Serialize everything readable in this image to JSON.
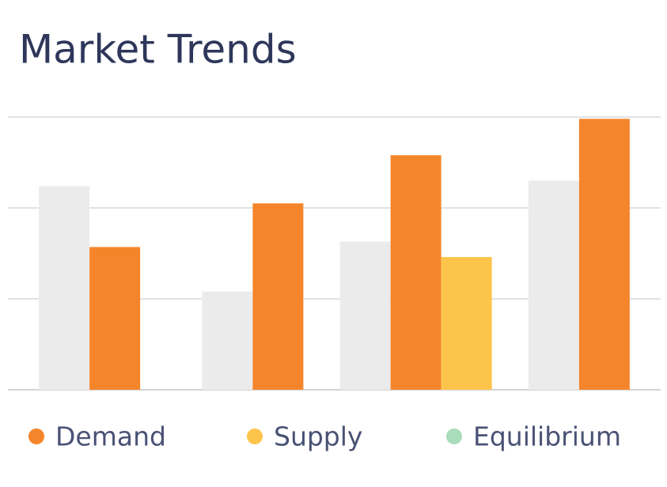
{
  "chart_data": {
    "type": "bar",
    "title": "Market Trends",
    "categories": [
      null,
      null,
      null,
      null
    ],
    "series": [
      {
        "color": "#ebebeb",
        "values": [
          2.24,
          1.08,
          1.63,
          2.3
        ]
      },
      {
        "name": "Demand",
        "color": "#f5852a",
        "values": [
          1.57,
          2.05,
          2.58,
          2.98
        ]
      },
      {
        "name": "Supply",
        "color": "#fdc44c",
        "values": [
          null,
          null,
          1.46,
          null
        ]
      },
      {
        "name": "Equilibrium",
        "color": "#a9dcba",
        "values": [
          null,
          null,
          null,
          null
        ]
      }
    ],
    "ylim": [
      0,
      3
    ],
    "yticks": [
      0,
      1,
      2,
      3
    ],
    "show_tick_labels": false,
    "grid": true
  }
}
